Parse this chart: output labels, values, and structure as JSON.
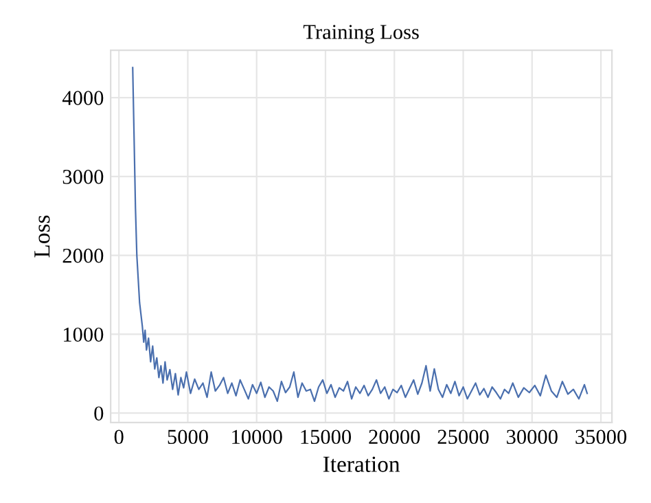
{
  "chart_data": {
    "type": "line",
    "title": "Training Loss",
    "xlabel": "Iteration",
    "ylabel": "Loss",
    "xlim": [
      -600,
      35800
    ],
    "ylim": [
      -120,
      4600
    ],
    "xticks": [
      0,
      5000,
      10000,
      15000,
      20000,
      25000,
      30000,
      35000
    ],
    "yticks": [
      0,
      1000,
      2000,
      3000,
      4000
    ],
    "grid": true,
    "line_style": "solid",
    "marker": "none",
    "series": [
      {
        "color": "#4a6fae",
        "x": [
          1000,
          1100,
          1200,
          1300,
          1400,
          1500,
          1600,
          1700,
          1800,
          1900,
          2000,
          2150,
          2300,
          2450,
          2600,
          2750,
          2900,
          3050,
          3200,
          3350,
          3500,
          3700,
          3900,
          4100,
          4300,
          4500,
          4700,
          4900,
          5200,
          5500,
          5800,
          6100,
          6400,
          6700,
          7000,
          7300,
          7600,
          7900,
          8200,
          8500,
          8800,
          9100,
          9400,
          9700,
          10000,
          10300,
          10600,
          10900,
          11200,
          11500,
          11800,
          12100,
          12400,
          12700,
          13000,
          13300,
          13600,
          13900,
          14200,
          14500,
          14800,
          15100,
          15400,
          15700,
          16000,
          16300,
          16600,
          16900,
          17200,
          17500,
          17800,
          18100,
          18400,
          18700,
          19000,
          19300,
          19600,
          19900,
          20200,
          20500,
          20800,
          21100,
          21400,
          21700,
          22000,
          22300,
          22600,
          22900,
          23200,
          23500,
          23800,
          24100,
          24400,
          24700,
          25000,
          25300,
          25600,
          25900,
          26200,
          26500,
          26800,
          27100,
          27400,
          27700,
          28000,
          28300,
          28600,
          29000,
          29400,
          29800,
          30200,
          30600,
          31000,
          31400,
          31800,
          32200,
          32600,
          33000,
          33400,
          33800,
          34000
        ],
        "values": [
          4380,
          3500,
          2600,
          2000,
          1700,
          1400,
          1250,
          1100,
          900,
          1050,
          800,
          950,
          650,
          850,
          560,
          700,
          450,
          600,
          380,
          650,
          420,
          550,
          300,
          500,
          230,
          450,
          320,
          520,
          250,
          430,
          300,
          380,
          200,
          520,
          280,
          350,
          450,
          250,
          380,
          220,
          420,
          300,
          180,
          360,
          250,
          390,
          200,
          330,
          280,
          150,
          400,
          260,
          330,
          520,
          200,
          380,
          280,
          300,
          150,
          330,
          420,
          250,
          360,
          200,
          320,
          280,
          400,
          180,
          330,
          250,
          350,
          220,
          300,
          420,
          250,
          330,
          180,
          300,
          260,
          350,
          200,
          310,
          420,
          240,
          380,
          600,
          280,
          560,
          300,
          200,
          360,
          250,
          400,
          220,
          330,
          180,
          280,
          380,
          230,
          310,
          200,
          330,
          260,
          180,
          300,
          250,
          380,
          200,
          320,
          260,
          350,
          220,
          480,
          280,
          200,
          400,
          240,
          300,
          180,
          360,
          250
        ]
      }
    ]
  }
}
